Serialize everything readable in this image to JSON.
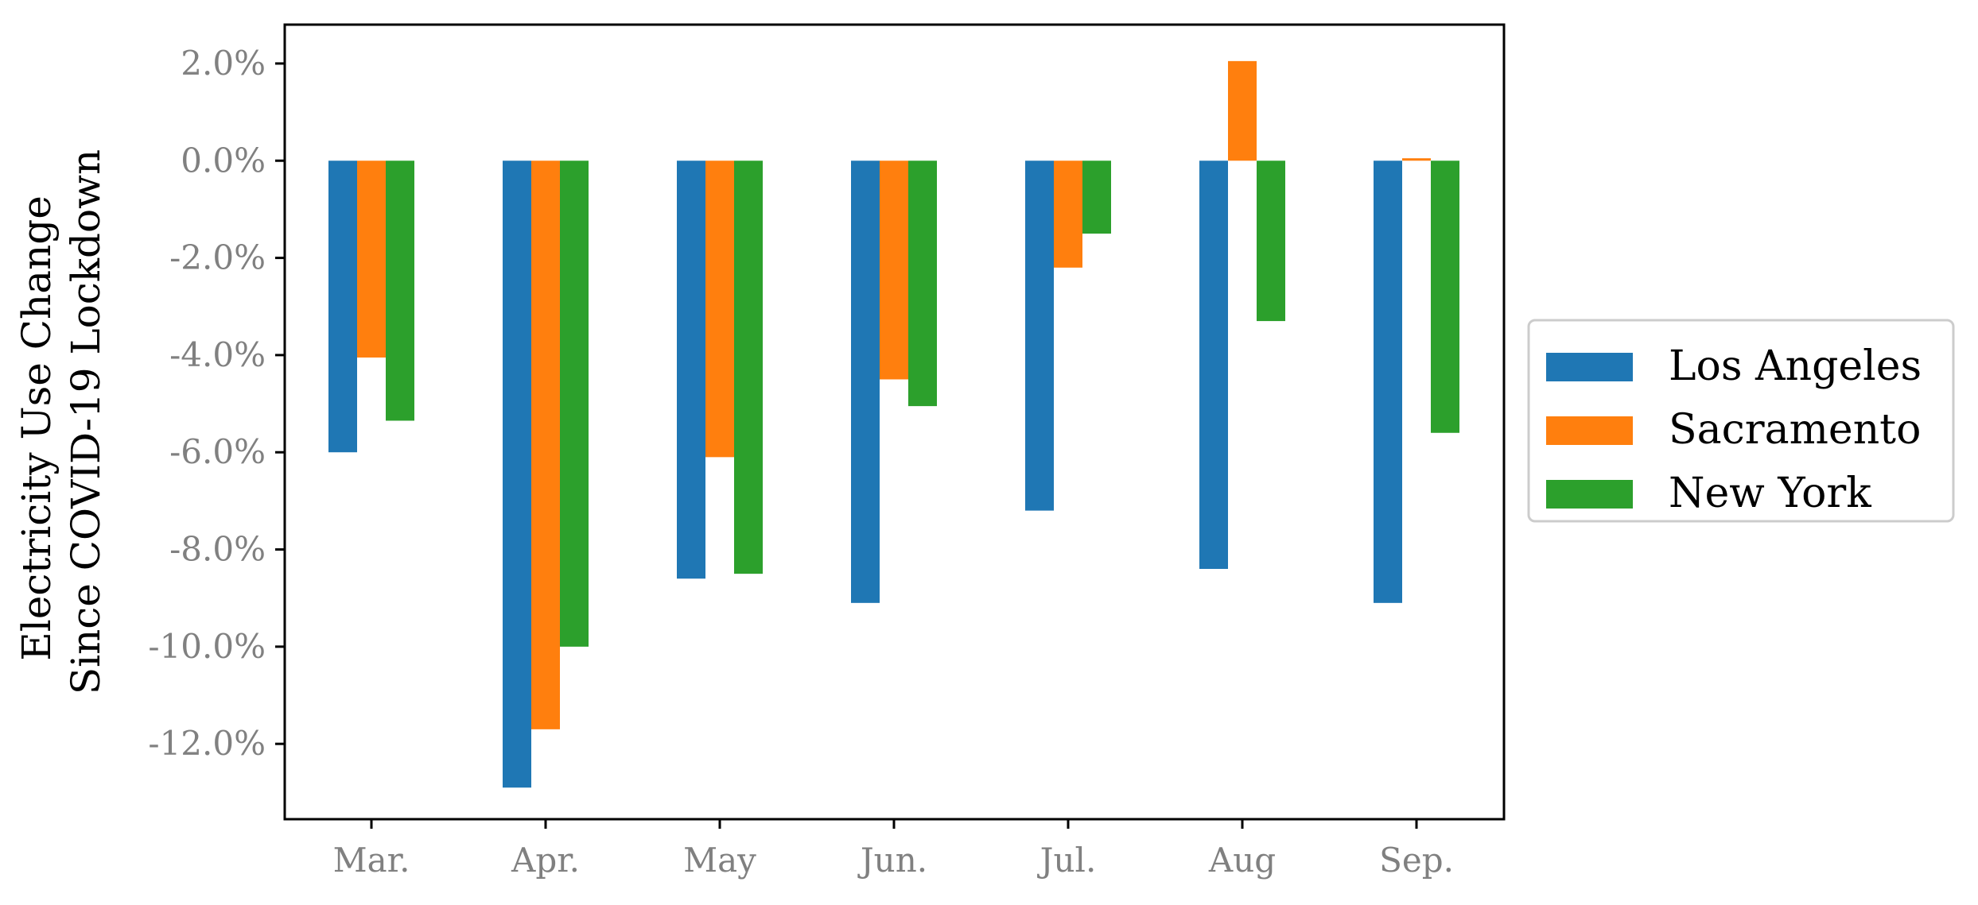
{
  "chart_data": {
    "type": "bar",
    "categories": [
      "Mar.",
      "Apr.",
      "May",
      "Jun.",
      "Jul.",
      "Aug",
      "Sep."
    ],
    "series": [
      {
        "name": "Los Angeles",
        "color": "#1f77b4",
        "values": [
          -6.0,
          -12.9,
          -8.6,
          -9.1,
          -7.2,
          -8.4,
          -9.1
        ]
      },
      {
        "name": "Sacramento",
        "color": "#ff7f0e",
        "values": [
          -4.05,
          -11.7,
          -6.1,
          -4.5,
          -2.2,
          2.05,
          0.05
        ]
      },
      {
        "name": "New York",
        "color": "#2ca02c",
        "values": [
          -5.35,
          -10.0,
          -8.5,
          -5.05,
          -1.5,
          -3.3,
          -5.6
        ]
      }
    ],
    "ylabel_lines": [
      "Electricity Use Change",
      "Since COVID-19 Lockdown"
    ],
    "xlabel": "",
    "title": "",
    "ylim": [
      -13.55,
      2.8
    ],
    "yticks": [
      2,
      0,
      -2,
      -4,
      -6,
      -8,
      -10,
      -12
    ],
    "ytick_labels": [
      "2.0%",
      "0.0%",
      "-2.0%",
      "-4.0%",
      "-6.0%",
      "-8.0%",
      "-10.0%",
      "-12.0%"
    ],
    "legend_position": "center-right-outside",
    "grid": false
  }
}
